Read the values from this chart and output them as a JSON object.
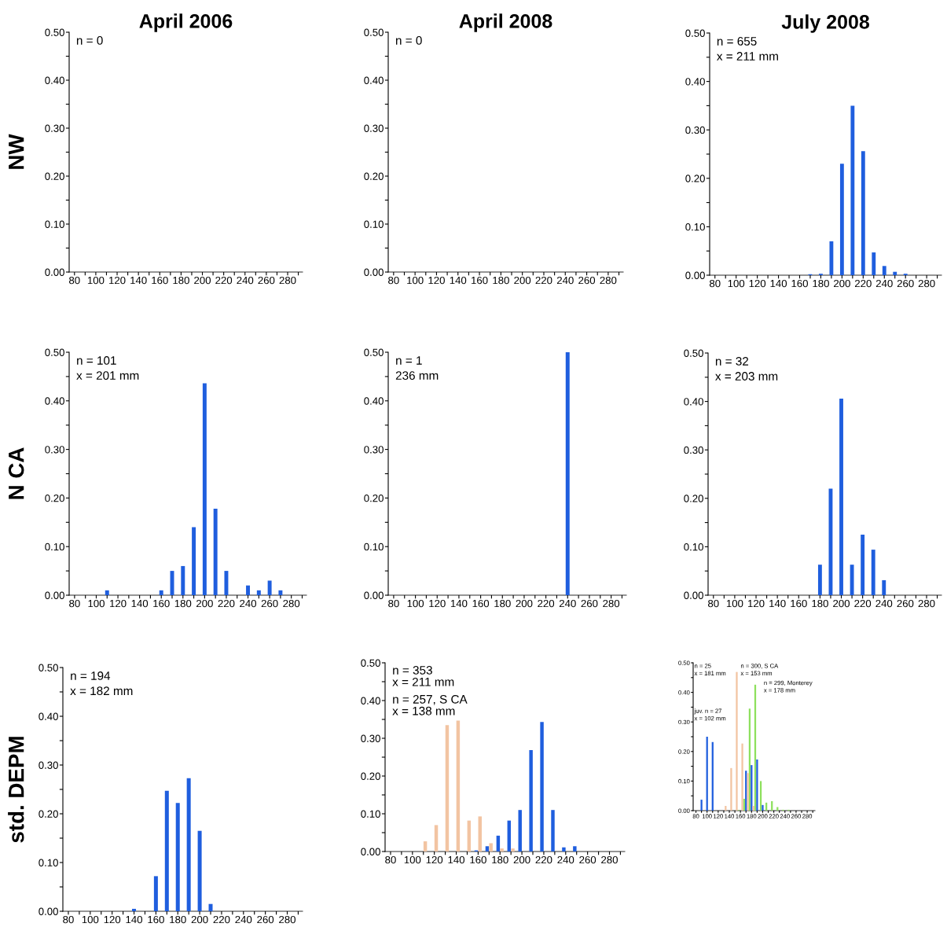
{
  "chart_data": [
    {
      "type": "bar",
      "title": "April 2006",
      "ylabel": "NW",
      "annotations": [
        "n = 0"
      ],
      "xlim": [
        75,
        294
      ],
      "ylim": [
        0,
        0.5
      ],
      "xticks": [
        80,
        {
          "value": 90,
          "label": null
        },
        100,
        {
          "value": 110,
          "label": null
        },
        120,
        {
          "value": 130,
          "label": null
        },
        140,
        {
          "value": 150,
          "label": null
        },
        160,
        {
          "value": 170,
          "label": null
        },
        180,
        {
          "value": 190,
          "label": null
        },
        200,
        {
          "value": 210,
          "label": null
        },
        220,
        {
          "value": 230,
          "label": null
        },
        240,
        {
          "value": 250,
          "label": null
        },
        260,
        {
          "value": 270,
          "label": null
        },
        280,
        {
          "value": 290,
          "label": null
        }
      ],
      "yticks": [
        {
          "value": 0,
          "label": "0.00"
        },
        {
          "value": 0.05,
          "label": null
        },
        {
          "value": 0.1,
          "label": "0.10"
        },
        {
          "value": 0.15,
          "label": null
        },
        {
          "value": 0.2,
          "label": "0.20"
        },
        {
          "value": 0.25,
          "label": null
        },
        {
          "value": 0.3,
          "label": "0.30"
        },
        {
          "value": 0.35,
          "label": null
        },
        {
          "value": 0.4,
          "label": "0.40"
        },
        {
          "value": 0.45,
          "label": null
        },
        {
          "value": 0.5,
          "label": "0.50"
        }
      ]
    },
    {
      "type": "bar",
      "title": "April 2008",
      "annotations": [
        "n = 0"
      ],
      "xlim": [
        75,
        294
      ],
      "ylim": [
        0,
        0.5
      ],
      "xticks": [
        80,
        {
          "value": 90,
          "label": null
        },
        100,
        {
          "value": 110,
          "label": null
        },
        120,
        {
          "value": 130,
          "label": null
        },
        140,
        {
          "value": 150,
          "label": null
        },
        160,
        {
          "value": 170,
          "label": null
        },
        180,
        {
          "value": 190,
          "label": null
        },
        200,
        {
          "value": 210,
          "label": null
        },
        220,
        {
          "value": 230,
          "label": null
        },
        240,
        {
          "value": 250,
          "label": null
        },
        260,
        {
          "value": 270,
          "label": null
        },
        280,
        {
          "value": 290,
          "label": null
        }
      ],
      "yticks": [
        {
          "value": 0,
          "label": "0.00"
        },
        {
          "value": 0.05,
          "label": null
        },
        {
          "value": 0.1,
          "label": "0.10"
        },
        {
          "value": 0.15,
          "label": null
        },
        {
          "value": 0.2,
          "label": "0.20"
        },
        {
          "value": 0.25,
          "label": null
        },
        {
          "value": 0.3,
          "label": "0.30"
        },
        {
          "value": 0.35,
          "label": null
        },
        {
          "value": 0.4,
          "label": "0.40"
        },
        {
          "value": 0.45,
          "label": null
        },
        {
          "value": 0.5,
          "label": "0.50"
        }
      ]
    },
    {
      "type": "bar",
      "title": "July 2008",
      "series": [
        {
          "color": "#1f5ede",
          "x": [
            170,
            180,
            190,
            200,
            210,
            220,
            230,
            240,
            250,
            260
          ],
          "values": [
            0.002,
            0.003,
            0.07,
            0.23,
            0.35,
            0.256,
            0.047,
            0.019,
            0.007,
            0.003
          ]
        }
      ],
      "annotations": [
        "n = 655",
        "x = 211 mm"
      ],
      "xlim": [
        75,
        294
      ],
      "ylim": [
        0,
        0.5
      ],
      "xticks": [
        80,
        {
          "value": 90,
          "label": null
        },
        100,
        {
          "value": 110,
          "label": null
        },
        120,
        {
          "value": 130,
          "label": null
        },
        140,
        {
          "value": 150,
          "label": null
        },
        160,
        {
          "value": 170,
          "label": null
        },
        180,
        {
          "value": 190,
          "label": null
        },
        200,
        {
          "value": 210,
          "label": null
        },
        220,
        {
          "value": 230,
          "label": null
        },
        240,
        {
          "value": 250,
          "label": null
        },
        260,
        {
          "value": 270,
          "label": null
        },
        280,
        {
          "value": 290,
          "label": null
        }
      ],
      "yticks": [
        {
          "value": 0,
          "label": "0.00"
        },
        {
          "value": 0.05,
          "label": null
        },
        {
          "value": 0.1,
          "label": "0.10"
        },
        {
          "value": 0.15,
          "label": null
        },
        {
          "value": 0.2,
          "label": "0.20"
        },
        {
          "value": 0.25,
          "label": null
        },
        {
          "value": 0.3,
          "label": "0.30"
        },
        {
          "value": 0.35,
          "label": null
        },
        {
          "value": 0.4,
          "label": "0.40"
        },
        {
          "value": 0.45,
          "label": null
        },
        {
          "value": 0.5,
          "label": "0.50"
        }
      ]
    },
    {
      "type": "bar",
      "ylabel": "N CA",
      "series": [
        {
          "color": "#1f5ede",
          "x": [
            110,
            160,
            170,
            180,
            190,
            200,
            210,
            220,
            240,
            250,
            260,
            270
          ],
          "values": [
            0.01,
            0.01,
            0.05,
            0.06,
            0.14,
            0.436,
            0.178,
            0.05,
            0.02,
            0.01,
            0.03,
            0.01
          ]
        }
      ],
      "annotations": [
        "n = 101",
        "x = 201 mm"
      ],
      "xlim": [
        75,
        294
      ],
      "ylim": [
        0,
        0.5
      ],
      "xticks": [
        80,
        {
          "value": 90,
          "label": null
        },
        100,
        {
          "value": 110,
          "label": null
        },
        120,
        {
          "value": 130,
          "label": null
        },
        140,
        {
          "value": 150,
          "label": null
        },
        160,
        {
          "value": 170,
          "label": null
        },
        180,
        {
          "value": 190,
          "label": null
        },
        200,
        {
          "value": 210,
          "label": null
        },
        220,
        {
          "value": 230,
          "label": null
        },
        240,
        {
          "value": 250,
          "label": null
        },
        260,
        {
          "value": 270,
          "label": null
        },
        280,
        {
          "value": 290,
          "label": null
        }
      ],
      "yticks": [
        {
          "value": 0,
          "label": "0.00"
        },
        {
          "value": 0.05,
          "label": null
        },
        {
          "value": 0.1,
          "label": "0.10"
        },
        {
          "value": 0.15,
          "label": null
        },
        {
          "value": 0.2,
          "label": "0.20"
        },
        {
          "value": 0.25,
          "label": null
        },
        {
          "value": 0.3,
          "label": "0.30"
        },
        {
          "value": 0.35,
          "label": null
        },
        {
          "value": 0.4,
          "label": "0.40"
        },
        {
          "value": 0.45,
          "label": null
        },
        {
          "value": 0.5,
          "label": "0.50"
        }
      ]
    },
    {
      "type": "bar",
      "series": [
        {
          "color": "#1f5ede",
          "x": [
            240
          ],
          "values": [
            0.5
          ]
        }
      ],
      "annotations": [
        "n = 1",
        "236 mm"
      ],
      "xlim": [
        75,
        294
      ],
      "ylim": [
        0,
        0.5
      ],
      "xticks": [
        80,
        {
          "value": 90,
          "label": null
        },
        100,
        {
          "value": 110,
          "label": null
        },
        120,
        {
          "value": 130,
          "label": null
        },
        140,
        {
          "value": 150,
          "label": null
        },
        160,
        {
          "value": 170,
          "label": null
        },
        180,
        {
          "value": 190,
          "label": null
        },
        200,
        {
          "value": 210,
          "label": null
        },
        220,
        {
          "value": 230,
          "label": null
        },
        240,
        {
          "value": 250,
          "label": null
        },
        260,
        {
          "value": 270,
          "label": null
        },
        280,
        {
          "value": 290,
          "label": null
        }
      ],
      "yticks": [
        {
          "value": 0,
          "label": "0.00"
        },
        {
          "value": 0.05,
          "label": null
        },
        {
          "value": 0.1,
          "label": "0.10"
        },
        {
          "value": 0.15,
          "label": null
        },
        {
          "value": 0.2,
          "label": "0.20"
        },
        {
          "value": 0.25,
          "label": null
        },
        {
          "value": 0.3,
          "label": "0.30"
        },
        {
          "value": 0.35,
          "label": null
        },
        {
          "value": 0.4,
          "label": "0.40"
        },
        {
          "value": 0.45,
          "label": null
        },
        {
          "value": 0.5,
          "label": "0.50"
        }
      ]
    },
    {
      "type": "bar",
      "series": [
        {
          "color": "#1f5ede",
          "x": [
            180,
            190,
            200,
            210,
            220,
            230,
            240
          ],
          "values": [
            0.063,
            0.22,
            0.406,
            0.063,
            0.125,
            0.094,
            0.031
          ]
        }
      ],
      "annotations": [
        "n = 32",
        "x = 203 mm"
      ],
      "xlim": [
        75,
        294
      ],
      "ylim": [
        0,
        0.5
      ],
      "xticks": [
        80,
        {
          "value": 90,
          "label": null
        },
        100,
        {
          "value": 110,
          "label": null
        },
        120,
        {
          "value": 130,
          "label": null
        },
        140,
        {
          "value": 150,
          "label": null
        },
        160,
        {
          "value": 170,
          "label": null
        },
        180,
        {
          "value": 190,
          "label": null
        },
        200,
        {
          "value": 210,
          "label": null
        },
        220,
        {
          "value": 230,
          "label": null
        },
        240,
        {
          "value": 250,
          "label": null
        },
        260,
        {
          "value": 270,
          "label": null
        },
        280,
        {
          "value": 290,
          "label": null
        }
      ],
      "yticks": [
        {
          "value": 0,
          "label": "0.00"
        },
        {
          "value": 0.05,
          "label": null
        },
        {
          "value": 0.1,
          "label": "0.10"
        },
        {
          "value": 0.15,
          "label": null
        },
        {
          "value": 0.2,
          "label": "0.20"
        },
        {
          "value": 0.25,
          "label": null
        },
        {
          "value": 0.3,
          "label": "0.30"
        },
        {
          "value": 0.35,
          "label": null
        },
        {
          "value": 0.4,
          "label": "0.40"
        },
        {
          "value": 0.45,
          "label": null
        },
        {
          "value": 0.5,
          "label": "0.50"
        }
      ]
    },
    {
      "type": "bar",
      "ylabel": "std. DEPM",
      "series": [
        {
          "color": "#1f5ede",
          "x": [
            140,
            160,
            170,
            180,
            190,
            200,
            210
          ],
          "values": [
            0.005,
            0.072,
            0.247,
            0.222,
            0.273,
            0.165,
            0.015
          ]
        }
      ],
      "annotations": [
        "n = 194",
        "x = 182 mm"
      ],
      "xlim": [
        75,
        294
      ],
      "ylim": [
        0,
        0.5
      ],
      "xticks": [
        80,
        {
          "value": 90,
          "label": null
        },
        100,
        {
          "value": 110,
          "label": null
        },
        120,
        {
          "value": 130,
          "label": null
        },
        140,
        {
          "value": 150,
          "label": null
        },
        160,
        {
          "value": 170,
          "label": null
        },
        180,
        {
          "value": 190,
          "label": null
        },
        200,
        {
          "value": 210,
          "label": null
        },
        220,
        {
          "value": 230,
          "label": null
        },
        240,
        {
          "value": 250,
          "label": null
        },
        260,
        {
          "value": 270,
          "label": null
        },
        280,
        {
          "value": 290,
          "label": null
        }
      ],
      "yticks": [
        {
          "value": 0,
          "label": "0.00"
        },
        {
          "value": 0.05,
          "label": null
        },
        {
          "value": 0.1,
          "label": "0.10"
        },
        {
          "value": 0.15,
          "label": null
        },
        {
          "value": 0.2,
          "label": "0.20"
        },
        {
          "value": 0.25,
          "label": null
        },
        {
          "value": 0.3,
          "label": "0.30"
        },
        {
          "value": 0.35,
          "label": null
        },
        {
          "value": 0.4,
          "label": "0.40"
        },
        {
          "value": 0.45,
          "label": null
        },
        {
          "value": 0.5,
          "label": "0.50"
        }
      ]
    },
    {
      "type": "bar",
      "series": [
        {
          "color": "#1f5ede",
          "x": [
            160,
            170,
            180,
            190,
            200,
            210,
            220,
            230,
            240,
            250
          ],
          "values": [
            0.003,
            0.014,
            0.042,
            0.082,
            0.11,
            0.269,
            0.343,
            0.11,
            0.011,
            0.014
          ]
        },
        {
          "color": "#f2c4a2",
          "x": [
            110,
            120,
            130,
            140,
            150,
            160,
            170,
            180,
            190
          ],
          "values": [
            0.027,
            0.07,
            0.335,
            0.347,
            0.082,
            0.093,
            0.022,
            0.008,
            0.008
          ]
        }
      ],
      "annotations": [
        "n = 353",
        "x = 211 mm",
        "n = 257, S CA",
        "x = 138 mm"
      ],
      "xlim": [
        75,
        294
      ],
      "ylim": [
        0,
        0.5
      ],
      "xticks": [
        80,
        {
          "value": 90,
          "label": null
        },
        100,
        {
          "value": 110,
          "label": null
        },
        120,
        {
          "value": 130,
          "label": null
        },
        140,
        {
          "value": 150,
          "label": null
        },
        160,
        {
          "value": 170,
          "label": null
        },
        180,
        {
          "value": 190,
          "label": null
        },
        200,
        {
          "value": 210,
          "label": null
        },
        220,
        {
          "value": 230,
          "label": null
        },
        240,
        {
          "value": 250,
          "label": null
        },
        260,
        {
          "value": 270,
          "label": null
        },
        280,
        {
          "value": 290,
          "label": null
        }
      ],
      "yticks": [
        {
          "value": 0,
          "label": "0.00"
        },
        {
          "value": 0.05,
          "label": null
        },
        {
          "value": 0.1,
          "label": "0.10"
        },
        {
          "value": 0.15,
          "label": null
        },
        {
          "value": 0.2,
          "label": "0.20"
        },
        {
          "value": 0.25,
          "label": null
        },
        {
          "value": 0.3,
          "label": "0.30"
        },
        {
          "value": 0.35,
          "label": null
        },
        {
          "value": 0.4,
          "label": "0.40"
        },
        {
          "value": 0.45,
          "label": null
        },
        {
          "value": 0.5,
          "label": "0.50"
        }
      ]
    },
    {
      "type": "bar",
      "series": [
        {
          "color": "#8ee05e",
          "x": [
            160,
            170,
            180,
            190,
            200,
            210,
            220,
            230,
            240,
            250
          ],
          "values": [
            0.002,
            0.04,
            0.345,
            0.426,
            0.1,
            0.027,
            0.032,
            0.012,
            0.003,
            0.003
          ]
        },
        {
          "color": "#1f5ede",
          "x": [
            90,
            100,
            110,
            170,
            180,
            190,
            200
          ],
          "values": [
            0.037,
            0.25,
            0.232,
            0.135,
            0.154,
            0.173,
            0.019
          ]
        },
        {
          "color": "#f2c4a2",
          "x": [
            130,
            140,
            150,
            160,
            170,
            180
          ],
          "values": [
            0.016,
            0.144,
            0.469,
            0.227,
            0.127,
            0.016
          ]
        }
      ],
      "annotations": [
        "n = 25",
        "x = 181 mm",
        "juv. n = 27",
        "x = 102 mm",
        "n = 300, S CA",
        "x = 153 mm",
        "n = 299, Monterey",
        "x = 178 mm"
      ],
      "xlim": [
        75,
        294
      ],
      "ylim": [
        0,
        0.5
      ],
      "xticks": [
        80,
        {
          "value": 90,
          "label": null
        },
        100,
        {
          "value": 110,
          "label": null
        },
        120,
        {
          "value": 130,
          "label": null
        },
        140,
        {
          "value": 150,
          "label": null
        },
        160,
        {
          "value": 170,
          "label": null
        },
        180,
        {
          "value": 190,
          "label": null
        },
        200,
        {
          "value": 210,
          "label": null
        },
        220,
        {
          "value": 230,
          "label": null
        },
        240,
        {
          "value": 250,
          "label": null
        },
        260,
        {
          "value": 270,
          "label": null
        },
        280,
        {
          "value": 290,
          "label": null
        }
      ],
      "yticks": [
        {
          "value": 0,
          "label": "0.00"
        },
        {
          "value": 0.05,
          "label": null
        },
        {
          "value": 0.1,
          "label": "0.10"
        },
        {
          "value": 0.15,
          "label": null
        },
        {
          "value": 0.2,
          "label": "0.20"
        },
        {
          "value": 0.25,
          "label": null
        },
        {
          "value": 0.3,
          "label": "0.30"
        },
        {
          "value": 0.35,
          "label": null
        },
        {
          "value": 0.4,
          "label": "0.40"
        },
        {
          "value": 0.45,
          "label": null
        },
        {
          "value": 0.5,
          "label": "0.50"
        }
      ]
    }
  ]
}
